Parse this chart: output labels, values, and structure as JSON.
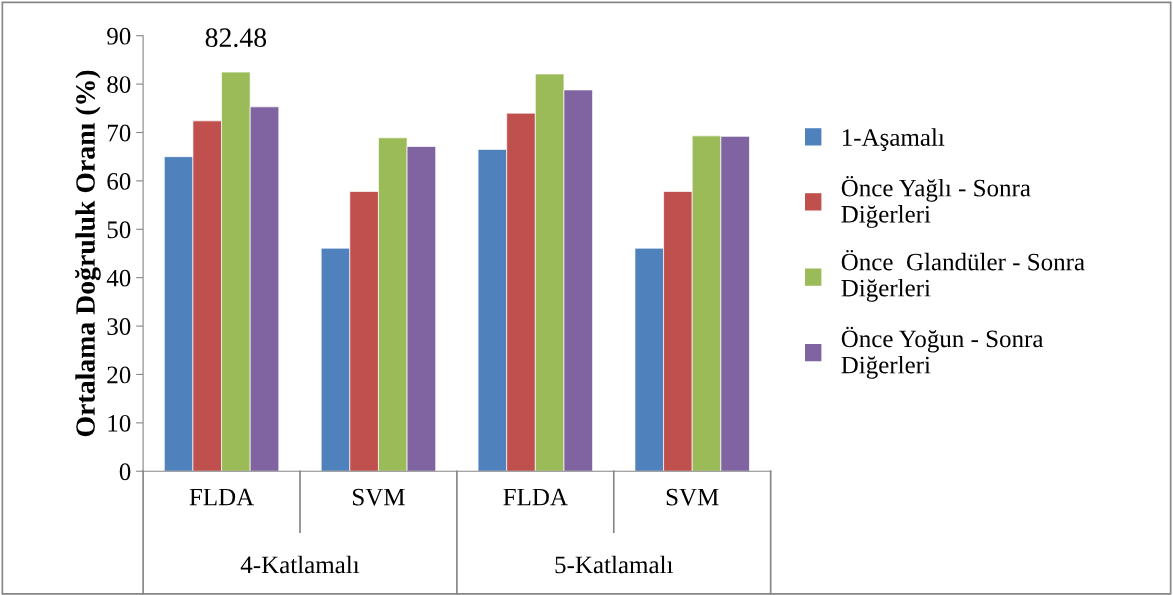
{
  "chart_data": {
    "type": "bar",
    "ylabel": "Ortalama Doğruluk Oranı (%)",
    "categories": [
      "FLDA",
      "SVM",
      "FLDA",
      "SVM"
    ],
    "annotations": [
      "4-Katlamalı",
      "5-Katlamalı"
    ],
    "series": [
      {
        "name": "1-Aşamalı",
        "color": "#4f81bd",
        "values": [
          65.0,
          46.1,
          66.5,
          46.1
        ]
      },
      {
        "name": "Önce Yağlı - Sonra Diğerleri",
        "color": "#c0504d",
        "values": [
          72.4,
          57.8,
          74.0,
          57.8
        ]
      },
      {
        "name": "Önce  Glandüler - Sonra Diğerleri",
        "color": "#9bbb59",
        "values": [
          82.48,
          68.9,
          82.1,
          69.3
        ],
        "value_labels": [
          "82.48",
          null,
          null,
          null
        ]
      },
      {
        "name": "Önce Yoğun - Sonra Diğerleri",
        "color": "#8064a2",
        "values": [
          75.3,
          67.1,
          78.8,
          69.2
        ]
      }
    ],
    "ylim": [
      0,
      90
    ],
    "yticks": [
      0,
      10,
      20,
      30,
      40,
      50,
      60,
      70,
      80,
      90
    ],
    "grid": false,
    "legend": "right"
  }
}
